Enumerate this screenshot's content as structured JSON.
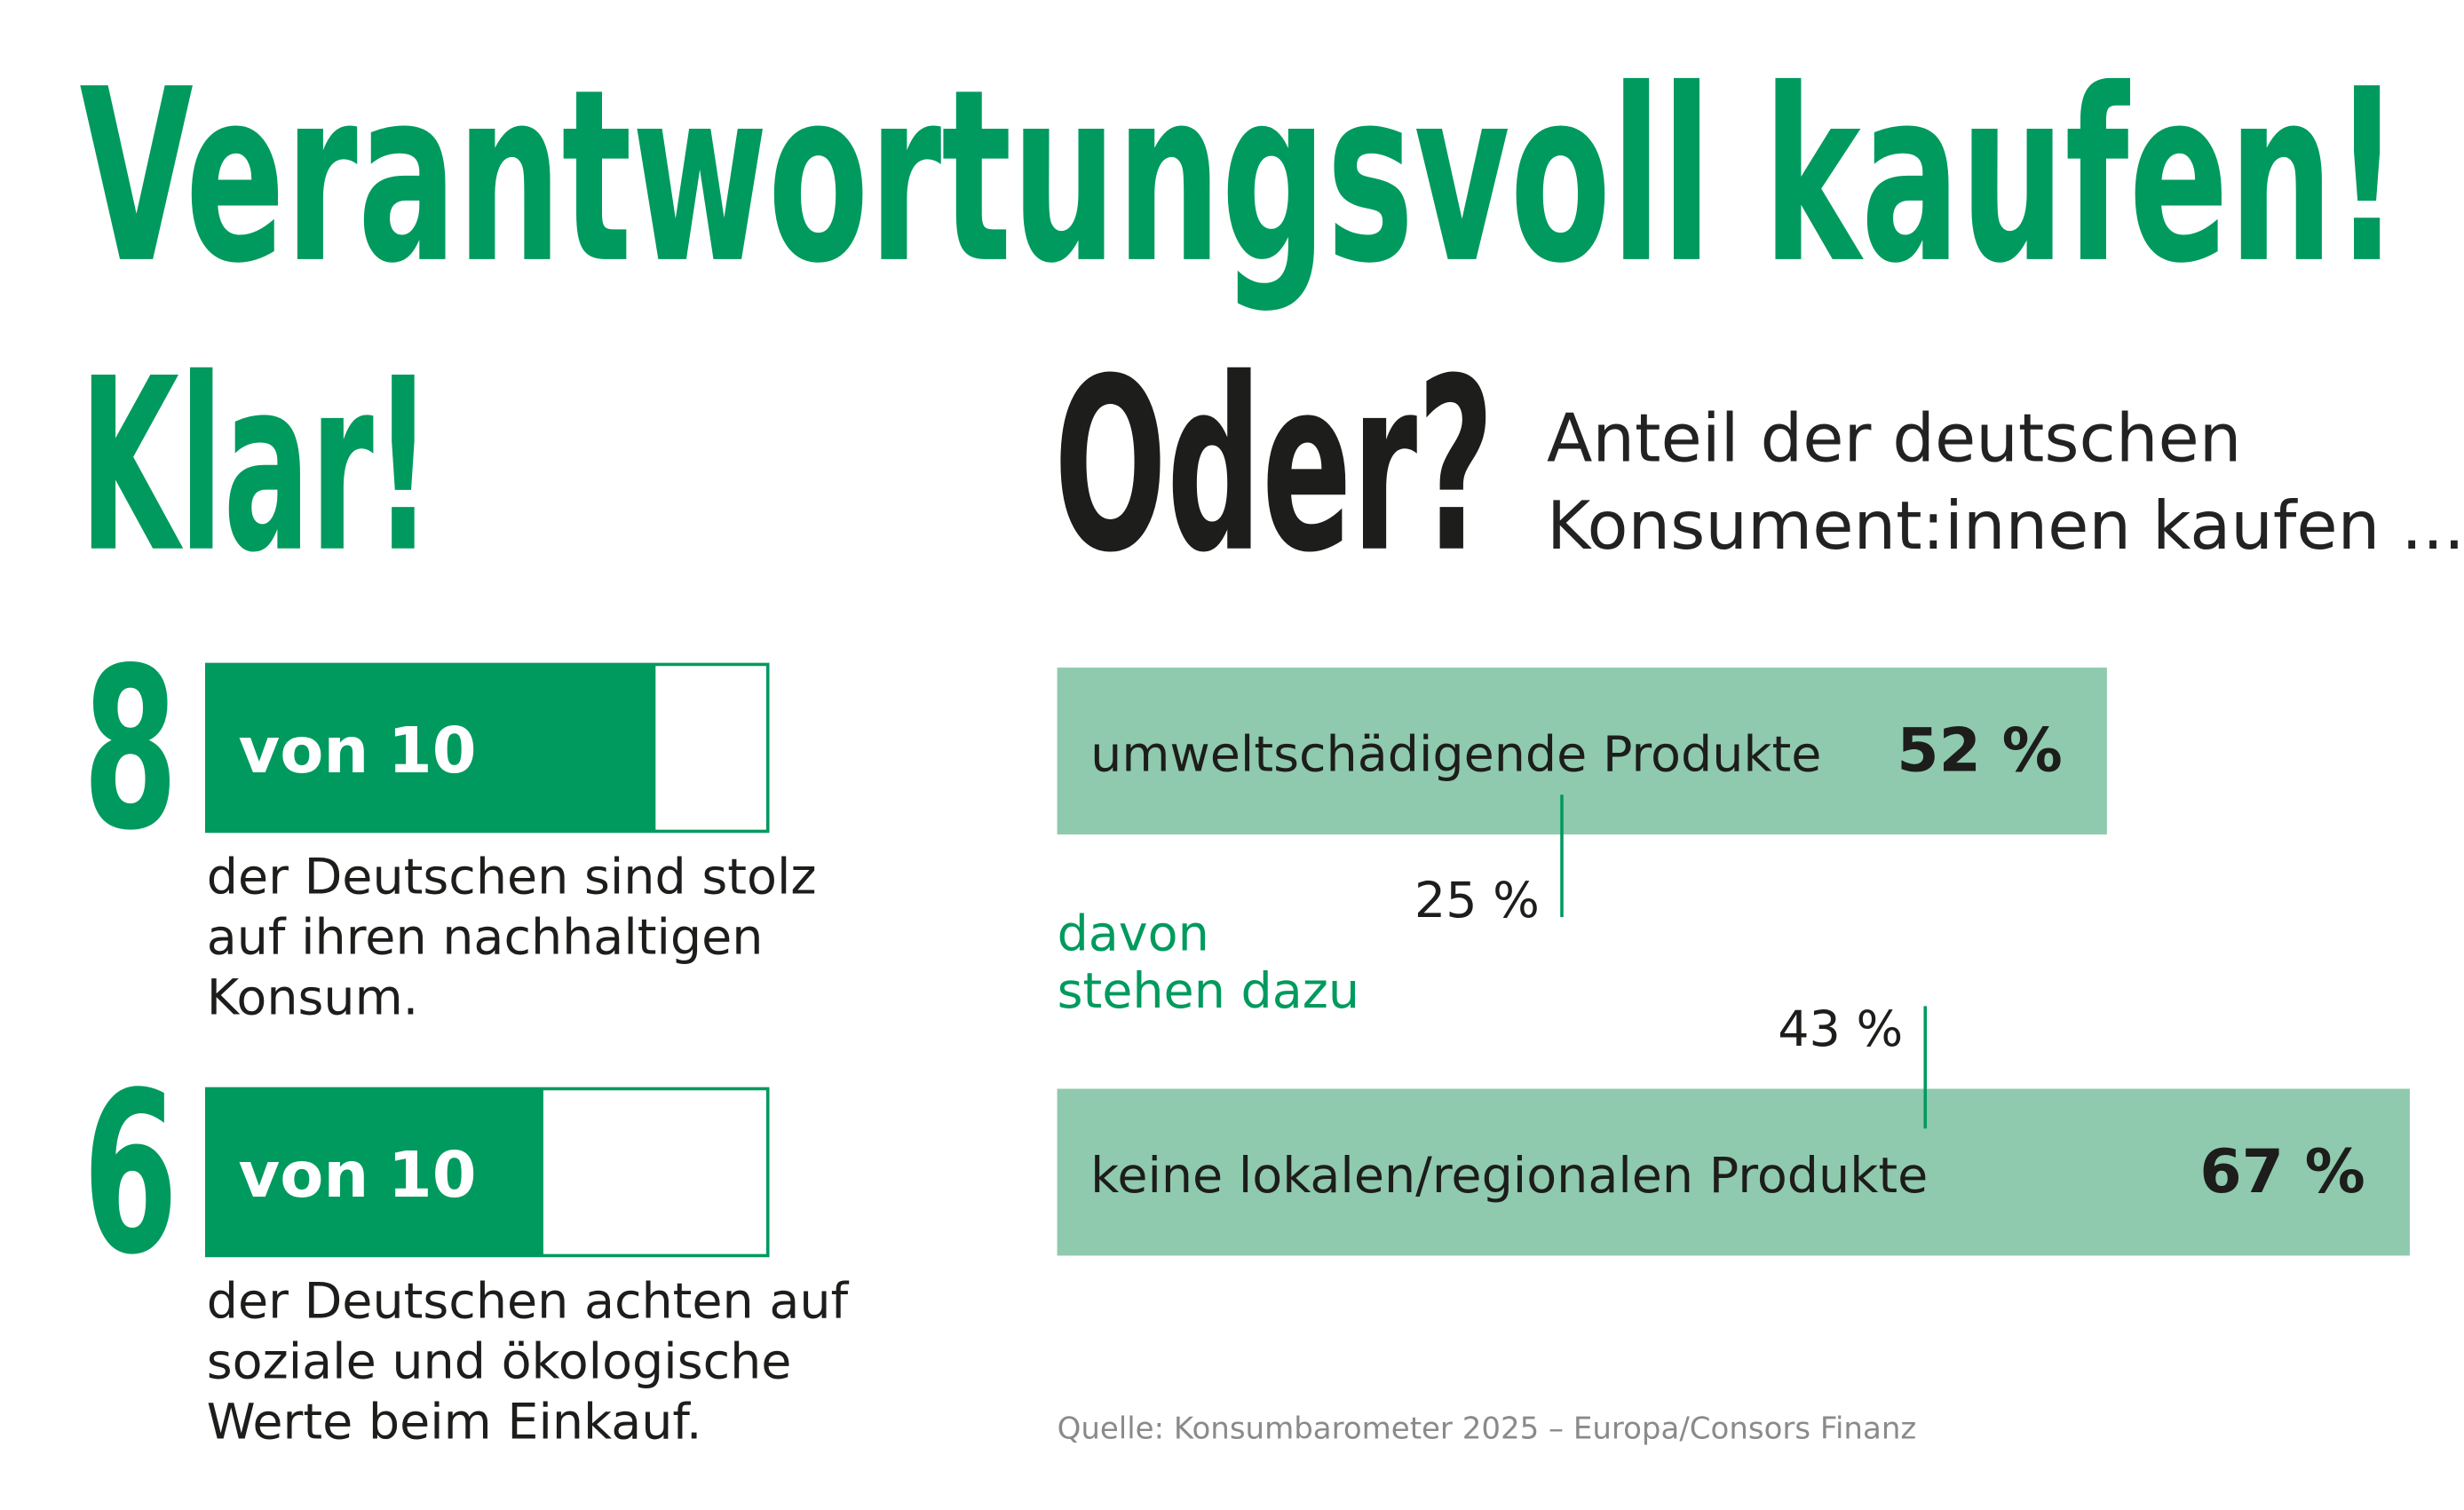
{
  "title": "Verantwortungsvoll kaufen!",
  "left": {
    "heading": "Klar!",
    "items": [
      {
        "value": 8,
        "of_label": "von",
        "of": 10,
        "lines": [
          "der Deutschen sind stolz",
          "auf ihren nachhaltigen",
          "Konsum."
        ]
      },
      {
        "value": 6,
        "of_label": "von",
        "of": 10,
        "lines": [
          "der Deutschen achten auf",
          "soziale und ökologische",
          "Werte beim Einkauf."
        ]
      }
    ]
  },
  "chart_data": {
    "type": "bar",
    "heading": "Oder?",
    "subtitle": [
      "Anteil der deutschen",
      "Konsument:innen kaufen ..."
    ],
    "categories": [
      "umweltschädigende Produkte",
      "keine lokalen/regionalen Produkte"
    ],
    "values": [
      52,
      67
    ],
    "value_labels": [
      "52 %",
      "67 %"
    ],
    "color": "#8fcaae",
    "sub_values": [
      25,
      43
    ],
    "sub_value_labels": [
      "25 %",
      "43 %"
    ],
    "sub_annotation": [
      "davon",
      "stehen dazu"
    ],
    "xlim": [
      0,
      100
    ],
    "source": "Quelle: Konsumbarometer 2025 – Europa/Consors Finanz"
  }
}
